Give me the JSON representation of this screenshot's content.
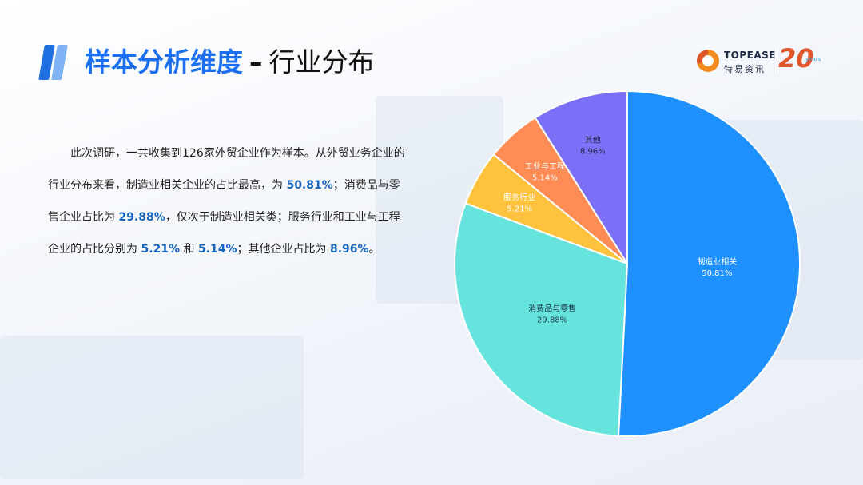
{
  "title": {
    "main": "样本分析维度",
    "separator": "–",
    "sub": "行业分布"
  },
  "logo": {
    "brand": "TOPEASE",
    "cn": "特易资讯",
    "anniversary": "20",
    "anniversary_suffix": "years"
  },
  "paragraph": {
    "t1": "此次调研，一共收集到126家外贸企业作为样本。从外贸业务企业的行业分布来看，制造业相关企业的占比最高，为 ",
    "v1": "50.81%",
    "t2": "；消费品与零售企业占比为 ",
    "v2": "29.88%",
    "t3": "，仅次于制造业相关类；服务行业和工业与工程企业的占比分别为 ",
    "v3": "5.21%",
    "t4": " 和 ",
    "v4": "5.14%",
    "t5": "；其他企业占比为 ",
    "v5": "8.96%",
    "t6": "。"
  },
  "chart_data": {
    "type": "pie",
    "title": "",
    "slices": [
      {
        "label": "制造业相关",
        "value": 50.81,
        "value_label": "50.81%",
        "color": "#1e90ff",
        "text_color": "#ffffff"
      },
      {
        "label": "消费品与零售",
        "value": 29.88,
        "value_label": "29.88%",
        "color": "#66e3dd",
        "text_color": "#1f3a4a"
      },
      {
        "label": "服务行业",
        "value": 5.21,
        "value_label": "5.21%",
        "color": "#ffc23d",
        "text_color": "#ffffff"
      },
      {
        "label": "工业与工程",
        "value": 5.14,
        "value_label": "5.14%",
        "color": "#ff8c55",
        "text_color": "#ffffff"
      },
      {
        "label": "其他",
        "value": 8.96,
        "value_label": "8.96%",
        "color": "#7b6ff7",
        "text_color": "#1f2a44"
      }
    ]
  }
}
